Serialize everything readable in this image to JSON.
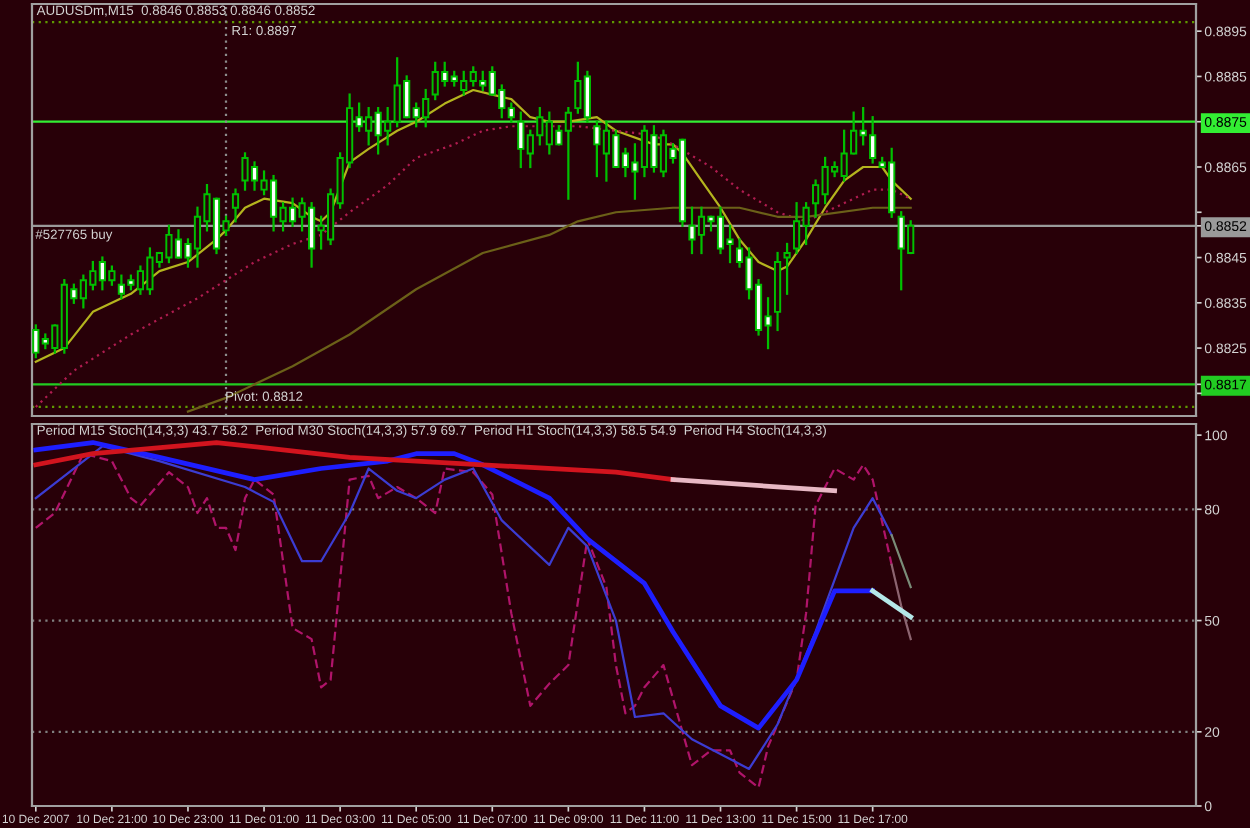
{
  "chart_data": [
    {
      "type": "candlestick",
      "title": "AUDUSDm,M15  0.8846 0.8853 0.8846 0.8852",
      "color": "#00c000",
      "x": [
        "2007-12-10T19:00",
        "2007-12-10T19:15",
        "2007-12-10T19:30",
        "2007-12-10T19:45",
        "2007-12-10T20:00",
        "2007-12-10T20:15",
        "2007-12-10T20:30",
        "2007-12-10T20:45",
        "2007-12-10T21:00",
        "2007-12-10T21:15",
        "2007-12-10T21:30",
        "2007-12-10T21:45",
        "2007-12-10T22:00",
        "2007-12-10T22:15",
        "2007-12-10T22:30",
        "2007-12-10T22:45",
        "2007-12-10T23:00",
        "2007-12-10T23:15",
        "2007-12-10T23:30",
        "2007-12-10T23:45",
        "2007-12-11T00:00",
        "2007-12-11T00:15",
        "2007-12-11T00:30",
        "2007-12-11T00:45",
        "2007-12-11T01:00",
        "2007-12-11T01:15",
        "2007-12-11T01:30",
        "2007-12-11T01:45",
        "2007-12-11T02:00",
        "2007-12-11T02:15",
        "2007-12-11T02:30",
        "2007-12-11T02:45",
        "2007-12-11T03:00",
        "2007-12-11T03:15",
        "2007-12-11T03:30",
        "2007-12-11T03:45",
        "2007-12-11T04:00",
        "2007-12-11T04:15",
        "2007-12-11T04:30",
        "2007-12-11T04:45",
        "2007-12-11T05:00",
        "2007-12-11T05:15",
        "2007-12-11T05:30",
        "2007-12-11T05:45",
        "2007-12-11T06:00",
        "2007-12-11T06:15",
        "2007-12-11T06:30",
        "2007-12-11T06:45",
        "2007-12-11T07:00",
        "2007-12-11T07:15",
        "2007-12-11T07:30",
        "2007-12-11T07:45",
        "2007-12-11T08:00",
        "2007-12-11T08:15",
        "2007-12-11T08:30",
        "2007-12-11T08:45",
        "2007-12-11T09:00",
        "2007-12-11T09:15",
        "2007-12-11T09:30",
        "2007-12-11T09:45",
        "2007-12-11T10:00",
        "2007-12-11T10:15",
        "2007-12-11T10:30",
        "2007-12-11T10:45",
        "2007-12-11T11:00",
        "2007-12-11T11:15",
        "2007-12-11T11:30",
        "2007-12-11T11:45",
        "2007-12-11T12:00",
        "2007-12-11T12:15",
        "2007-12-11T12:30",
        "2007-12-11T12:45",
        "2007-12-11T13:00",
        "2007-12-11T13:15",
        "2007-12-11T13:30",
        "2007-12-11T13:45",
        "2007-12-11T14:00",
        "2007-12-11T14:15",
        "2007-12-11T14:30",
        "2007-12-11T14:45",
        "2007-12-11T15:00",
        "2007-12-11T15:15",
        "2007-12-11T15:30",
        "2007-12-11T15:45",
        "2007-12-11T16:00",
        "2007-12-11T16:15",
        "2007-12-11T16:30",
        "2007-12-11T16:45",
        "2007-12-11T17:00",
        "2007-12-11T17:15",
        "2007-12-11T17:30",
        "2007-12-11T17:45",
        "2007-12-11T18:00"
      ],
      "ohlc": [
        [
          0.8829,
          0.883,
          0.8823,
          0.8824
        ],
        [
          0.8827,
          0.8828,
          0.8825,
          0.8826
        ],
        [
          0.8825,
          0.883,
          0.8824,
          0.883
        ],
        [
          0.8825,
          0.884,
          0.8824,
          0.8839
        ],
        [
          0.8838,
          0.8839,
          0.8835,
          0.8836
        ],
        [
          0.8836,
          0.8841,
          0.8834,
          0.884
        ],
        [
          0.8839,
          0.8844,
          0.8838,
          0.8842
        ],
        [
          0.8844,
          0.8845,
          0.8838,
          0.884
        ],
        [
          0.884,
          0.8843,
          0.8839,
          0.8842
        ],
        [
          0.8839,
          0.8841,
          0.8836,
          0.8837
        ],
        [
          0.884,
          0.8841,
          0.8838,
          0.8839
        ],
        [
          0.8838,
          0.8843,
          0.8837,
          0.8842
        ],
        [
          0.8838,
          0.8847,
          0.8837,
          0.8845
        ],
        [
          0.8844,
          0.8846,
          0.8843,
          0.8846
        ],
        [
          0.8845,
          0.8852,
          0.8844,
          0.885
        ],
        [
          0.8849,
          0.8851,
          0.8845,
          0.8845
        ],
        [
          0.8848,
          0.8849,
          0.8843,
          0.8845
        ],
        [
          0.8847,
          0.8856,
          0.8843,
          0.8854
        ],
        [
          0.8853,
          0.8861,
          0.8851,
          0.8859
        ],
        [
          0.8858,
          0.8858,
          0.8846,
          0.8847
        ],
        [
          0.8851,
          0.8854,
          0.885,
          0.8853
        ],
        [
          0.8856,
          0.886,
          0.8853,
          0.8859
        ],
        [
          0.8862,
          0.8868,
          0.886,
          0.8867
        ],
        [
          0.8865,
          0.8866,
          0.886,
          0.8862
        ],
        [
          0.886,
          0.8864,
          0.8859,
          0.8862
        ],
        [
          0.8862,
          0.8863,
          0.8851,
          0.8854
        ],
        [
          0.8853,
          0.8857,
          0.8851,
          0.8856
        ],
        [
          0.8856,
          0.8858,
          0.8852,
          0.8853
        ],
        [
          0.8854,
          0.8858,
          0.8851,
          0.8857
        ],
        [
          0.8856,
          0.8857,
          0.8843,
          0.8847
        ],
        [
          0.8851,
          0.8854,
          0.8847,
          0.8852
        ],
        [
          0.8849,
          0.886,
          0.8848,
          0.8859
        ],
        [
          0.8857,
          0.8868,
          0.8856,
          0.8867
        ],
        [
          0.8866,
          0.8881,
          0.8865,
          0.8878
        ],
        [
          0.8876,
          0.8879,
          0.8873,
          0.8874
        ],
        [
          0.8873,
          0.8878,
          0.887,
          0.8876
        ],
        [
          0.8877,
          0.8878,
          0.8868,
          0.8872
        ],
        [
          0.8873,
          0.8878,
          0.887,
          0.8875
        ],
        [
          0.8875,
          0.8889,
          0.8874,
          0.8883
        ],
        [
          0.8884,
          0.8885,
          0.8876,
          0.8876
        ],
        [
          0.8878,
          0.8879,
          0.8874,
          0.8876
        ],
        [
          0.8876,
          0.8882,
          0.8874,
          0.888
        ],
        [
          0.8881,
          0.8888,
          0.888,
          0.8886
        ],
        [
          0.8886,
          0.8888,
          0.8883,
          0.8884
        ],
        [
          0.8885,
          0.8886,
          0.8883,
          0.8884
        ],
        [
          0.8882,
          0.8886,
          0.8881,
          0.8884
        ],
        [
          0.8884,
          0.8887,
          0.8883,
          0.8886
        ],
        [
          0.8884,
          0.8886,
          0.8882,
          0.8883
        ],
        [
          0.8886,
          0.8887,
          0.8881,
          0.8881
        ],
        [
          0.8882,
          0.8883,
          0.8876,
          0.8878
        ],
        [
          0.8878,
          0.8879,
          0.8875,
          0.8876
        ],
        [
          0.8875,
          0.8877,
          0.8865,
          0.8869
        ],
        [
          0.8868,
          0.8873,
          0.8865,
          0.8872
        ],
        [
          0.8872,
          0.8878,
          0.887,
          0.8876
        ],
        [
          0.887,
          0.8877,
          0.8868,
          0.8875
        ],
        [
          0.8873,
          0.8874,
          0.887,
          0.887
        ],
        [
          0.8873,
          0.8878,
          0.8858,
          0.8877
        ],
        [
          0.8878,
          0.8888,
          0.8877,
          0.8884
        ],
        [
          0.8885,
          0.8886,
          0.8875,
          0.8876
        ],
        [
          0.8874,
          0.8875,
          0.8863,
          0.887
        ],
        [
          0.8868,
          0.8875,
          0.8862,
          0.8873
        ],
        [
          0.8872,
          0.8873,
          0.8865,
          0.8865
        ],
        [
          0.8868,
          0.8869,
          0.8863,
          0.8865
        ],
        [
          0.8866,
          0.887,
          0.8858,
          0.8864
        ],
        [
          0.8865,
          0.8874,
          0.8863,
          0.8873
        ],
        [
          0.8872,
          0.8874,
          0.8864,
          0.8865
        ],
        [
          0.8864,
          0.8873,
          0.8863,
          0.8872
        ],
        [
          0.8869,
          0.887,
          0.8866,
          0.8867
        ],
        [
          0.8871,
          0.8871,
          0.8852,
          0.8853
        ],
        [
          0.8852,
          0.8856,
          0.8846,
          0.8849
        ],
        [
          0.885,
          0.8856,
          0.8846,
          0.8854
        ],
        [
          0.8854,
          0.8854,
          0.8851,
          0.8853
        ],
        [
          0.8854,
          0.8856,
          0.8846,
          0.8847
        ],
        [
          0.8849,
          0.8852,
          0.8844,
          0.8848
        ],
        [
          0.8847,
          0.8849,
          0.8843,
          0.8844
        ],
        [
          0.8845,
          0.8847,
          0.8836,
          0.8838
        ],
        [
          0.8839,
          0.884,
          0.8828,
          0.8829
        ],
        [
          0.8832,
          0.8836,
          0.8825,
          0.883
        ],
        [
          0.8833,
          0.8846,
          0.8829,
          0.8844
        ],
        [
          0.8845,
          0.8848,
          0.8837,
          0.8846
        ],
        [
          0.8847,
          0.8857,
          0.8846,
          0.8853
        ],
        [
          0.8852,
          0.8857,
          0.8848,
          0.8856
        ],
        [
          0.8857,
          0.8862,
          0.8854,
          0.8861
        ],
        [
          0.8859,
          0.8867,
          0.8857,
          0.8865
        ],
        [
          0.8864,
          0.8866,
          0.8863,
          0.8865
        ],
        [
          0.8863,
          0.8873,
          0.8862,
          0.8868
        ],
        [
          0.8868,
          0.8877,
          0.8868,
          0.8873
        ],
        [
          0.8873,
          0.8878,
          0.887,
          0.8872
        ],
        [
          0.8872,
          0.8876,
          0.8866,
          0.8867
        ],
        [
          0.8866,
          0.8867,
          0.8865,
          0.8865
        ],
        [
          0.8866,
          0.8869,
          0.8854,
          0.8855
        ],
        [
          0.8854,
          0.8855,
          0.8838,
          0.8847
        ],
        [
          0.8846,
          0.8853,
          0.8846,
          0.8852
        ]
      ],
      "series": [
        {
          "type": "line",
          "color": "#b4b41e",
          "x": [
            "2007-12-10T19:00",
            "2007-12-10T19:45",
            "2007-12-10T20:30",
            "2007-12-10T21:30",
            "2007-12-10T22:15",
            "2007-12-10T23:00",
            "2007-12-10T23:45",
            "2007-12-11T00:00",
            "2007-12-11T00:30",
            "2007-12-11T01:00",
            "2007-12-11T01:45",
            "2007-12-11T02:15",
            "2007-12-11T02:30",
            "2007-12-11T02:45",
            "2007-12-11T03:15",
            "2007-12-11T03:45",
            "2007-12-11T04:30",
            "2007-12-11T05:00",
            "2007-12-11T05:45",
            "2007-12-11T06:30",
            "2007-12-11T07:00",
            "2007-12-11T07:30",
            "2007-12-11T08:00",
            "2007-12-11T08:30",
            "2007-12-11T09:00",
            "2007-12-11T09:45",
            "2007-12-11T10:15",
            "2007-12-11T11:15",
            "2007-12-11T11:45",
            "2007-12-11T12:00",
            "2007-12-11T12:30",
            "2007-12-11T13:00",
            "2007-12-11T13:30",
            "2007-12-11T14:00",
            "2007-12-11T14:30",
            "2007-12-11T14:45",
            "2007-12-11T15:15",
            "2007-12-11T15:45",
            "2007-12-11T16:15",
            "2007-12-11T16:45",
            "2007-12-11T17:15",
            "2007-12-11T17:30",
            "2007-12-11T18:00"
          ],
          "values": [
            0.8822,
            0.8825,
            0.8833,
            0.8837,
            0.8842,
            0.8844,
            0.8849,
            0.8851,
            0.8856,
            0.8858,
            0.8857,
            0.8854,
            0.8853,
            0.8855,
            0.8866,
            0.8869,
            0.8873,
            0.8875,
            0.8879,
            0.8882,
            0.8881,
            0.888,
            0.8876,
            0.8875,
            0.8875,
            0.8876,
            0.8873,
            0.887,
            0.887,
            0.8868,
            0.8862,
            0.8856,
            0.8849,
            0.8844,
            0.8842,
            0.8843,
            0.8849,
            0.8856,
            0.8862,
            0.8865,
            0.8865,
            0.8862,
            0.8858
          ]
        },
        {
          "type": "line",
          "color": "#b01c50",
          "line_style": "dotted",
          "x": [
            "2007-12-10T19:00",
            "2007-12-10T20:00",
            "2007-12-10T21:30",
            "2007-12-10T23:15",
            "2007-12-11T00:00",
            "2007-12-11T00:45",
            "2007-12-11T01:45",
            "2007-12-11T02:30",
            "2007-12-11T03:15",
            "2007-12-11T04:15",
            "2007-12-11T05:00",
            "2007-12-11T06:00",
            "2007-12-11T06:45",
            "2007-12-11T07:30",
            "2007-12-11T08:30",
            "2007-12-11T09:15",
            "2007-12-11T10:15",
            "2007-12-11T11:15",
            "2007-12-11T11:45",
            "2007-12-11T12:45",
            "2007-12-11T13:30",
            "2007-12-11T14:30",
            "2007-12-11T15:15",
            "2007-12-11T16:00",
            "2007-12-11T17:00",
            "2007-12-11T17:30",
            "2007-12-11T18:00"
          ],
          "values": [
            0.8812,
            0.882,
            0.8828,
            0.8836,
            0.884,
            0.8844,
            0.8848,
            0.885,
            0.8855,
            0.8861,
            0.8867,
            0.887,
            0.8873,
            0.8874,
            0.8874,
            0.8874,
            0.8873,
            0.8872,
            0.887,
            0.8865,
            0.886,
            0.8855,
            0.8853,
            0.8856,
            0.886,
            0.886,
            0.8858
          ]
        },
        {
          "type": "line",
          "color": "#6b6018",
          "x": [
            "2007-12-10T23:00",
            "2007-12-11T00:00",
            "2007-12-11T01:45",
            "2007-12-11T03:15",
            "2007-12-11T05:00",
            "2007-12-11T06:45",
            "2007-12-11T08:30",
            "2007-12-11T09:15",
            "2007-12-11T10:15",
            "2007-12-11T11:45",
            "2007-12-11T13:30",
            "2007-12-11T14:30",
            "2007-12-11T15:15",
            "2007-12-11T17:00",
            "2007-12-11T18:00"
          ],
          "values": [
            0.8811,
            0.8814,
            0.8821,
            0.8828,
            0.8838,
            0.8846,
            0.885,
            0.8853,
            0.8855,
            0.8856,
            0.8856,
            0.8854,
            0.8854,
            0.8856,
            0.8856
          ]
        }
      ],
      "xlim": [
        "2007-12-10T18:54",
        "2007-12-12T01:30"
      ],
      "ylim": [
        0.881,
        0.8901
      ],
      "yticks": [
        0.8895,
        0.8885,
        0.8875,
        0.8865,
        {
          "value": 0.8855,
          "label": null
        },
        0.8852,
        0.8845,
        0.8835,
        0.8825,
        0.8817,
        {
          "value": 0.8815,
          "label": null
        }
      ],
      "tick_labels": "y",
      "ref_lines": [
        {
          "axis": "y",
          "value": 0.8897,
          "color": "#5f9a00",
          "line_style": "dotted"
        },
        {
          "axis": "y",
          "value": 0.8875,
          "color": "#33ee33"
        },
        {
          "axis": "y",
          "value": 0.8852,
          "color": "#9a9a9a"
        },
        {
          "axis": "y",
          "value": 0.8817,
          "color": "#22cc22"
        },
        {
          "axis": "y",
          "value": 0.8812,
          "color": "#5f9a00",
          "line_style": "dotted"
        },
        {
          "axis": "x",
          "value": "2007-12-11T00:00",
          "color": "#8c8c8c",
          "line_style": "dotted"
        }
      ],
      "annotations": [
        {
          "text": "R1: 0.8897",
          "x": "2007-12-11T01:00",
          "y": 0.8897
        },
        {
          "text": "#527765 buy",
          "x": "2007-12-10T20:00",
          "y": 0.8852
        },
        {
          "text": "Pivot: 0.8812",
          "x": "2007-12-11T01:00",
          "y": 0.8812
        }
      ]
    },
    {
      "type": "line",
      "title": "Period M15 Stoch(14,3,3) 43.7 58.2  Period M30 Stoch(14,3,3) 57.9 69.7  Period H1 Stoch(14,3,3) 58.5 54.9  Period H4 Stoch(14,3,3)",
      "series": [
        {
          "color": "#b0146a",
          "line_style": "dashed",
          "x": [
            "2007-12-10T19:00",
            "2007-12-10T19:30",
            "2007-12-10T20:15",
            "2007-12-10T21:00",
            "2007-12-10T21:30",
            "2007-12-10T21:45",
            "2007-12-10T22:30",
            "2007-12-10T23:00",
            "2007-12-10T23:15",
            "2007-12-10T23:30",
            "2007-12-10T23:45",
            "2007-12-11T00:00",
            "2007-12-11T00:15",
            "2007-12-11T00:30",
            "2007-12-11T00:45",
            "2007-12-11T01:15",
            "2007-12-11T01:45",
            "2007-12-11T02:15",
            "2007-12-11T02:30",
            "2007-12-11T02:45",
            "2007-12-11T03:15",
            "2007-12-11T03:45",
            "2007-12-11T04:00",
            "2007-12-11T04:30",
            "2007-12-11T05:00",
            "2007-12-11T05:30",
            "2007-12-11T05:45",
            "2007-12-11T06:30",
            "2007-12-11T07:00",
            "2007-12-11T07:30",
            "2007-12-11T08:00",
            "2007-12-11T08:30",
            "2007-12-11T09:00",
            "2007-12-11T09:30",
            "2007-12-11T10:00",
            "2007-12-11T10:15",
            "2007-12-11T10:30",
            "2007-12-11T10:45",
            "2007-12-11T11:00",
            "2007-12-11T11:30",
            "2007-12-11T12:15",
            "2007-12-11T12:45",
            "2007-12-11T13:15",
            "2007-12-11T13:30",
            "2007-12-11T14:00",
            "2007-12-11T14:15",
            "2007-12-11T15:00",
            "2007-12-11T15:15",
            "2007-12-11T15:30",
            "2007-12-11T16:00",
            "2007-12-11T16:30",
            "2007-12-11T16:45",
            "2007-12-11T17:00",
            "2007-12-11T17:30"
          ],
          "values": [
            75,
            79,
            95,
            93,
            83,
            81,
            90,
            86,
            79,
            83,
            75,
            75,
            69,
            83,
            88,
            84,
            48,
            45,
            32,
            34,
            88,
            89,
            83,
            86,
            83,
            79,
            91,
            90,
            84,
            52,
            27,
            33,
            38,
            72,
            59,
            38,
            25,
            27,
            32,
            38,
            11,
            15,
            15,
            9,
            5,
            16,
            34,
            52,
            81,
            91,
            88,
            92,
            88,
            65
          ]
        },
        {
          "color": "#3c3cd2",
          "x": [
            "2007-12-10T19:00",
            "2007-12-10T20:00",
            "2007-12-10T20:45",
            "2007-12-10T22:15",
            "2007-12-11T00:30",
            "2007-12-11T01:15",
            "2007-12-11T02:00",
            "2007-12-11T02:30",
            "2007-12-11T03:15",
            "2007-12-11T03:45",
            "2007-12-11T04:30",
            "2007-12-11T05:00",
            "2007-12-11T05:45",
            "2007-12-11T06:30",
            "2007-12-11T07:15",
            "2007-12-11T08:30",
            "2007-12-11T09:00",
            "2007-12-11T09:30",
            "2007-12-11T10:15",
            "2007-12-11T10:45",
            "2007-12-11T11:30",
            "2007-12-11T12:15",
            "2007-12-11T13:45",
            "2007-12-11T14:30",
            "2007-12-11T15:30",
            "2007-12-11T16:30",
            "2007-12-11T17:00",
            "2007-12-11T17:30"
          ],
          "values": [
            83,
            91,
            97,
            93,
            86,
            82,
            66,
            66,
            79,
            91,
            85,
            83,
            88,
            91,
            77,
            65,
            75,
            70,
            50,
            24,
            25,
            18,
            10,
            22,
            47,
            75,
            83,
            73
          ]
        },
        {
          "color": "#1e1eff",
          "x": [
            "2007-12-10T19:00",
            "2007-12-10T20:30",
            "2007-12-10T22:15",
            "2007-12-11T00:45",
            "2007-12-11T02:30",
            "2007-12-11T04:15",
            "2007-12-11T05:00",
            "2007-12-11T06:00",
            "2007-12-11T06:45",
            "2007-12-11T08:30",
            "2007-12-11T09:30",
            "2007-12-11T10:15",
            "2007-12-11T11:00",
            "2007-12-11T11:45",
            "2007-12-11T13:00",
            "2007-12-11T14:00",
            "2007-12-11T15:00",
            "2007-12-11T16:00",
            "2007-12-11T17:00"
          ],
          "values": [
            96,
            98,
            94,
            88,
            91,
            93,
            95,
            95,
            92,
            83,
            72,
            66,
            60,
            47,
            27,
            21,
            34,
            58,
            58
          ]
        },
        {
          "color": "#d2141e",
          "x": [
            "2007-12-10T19:00",
            "2007-12-10T20:30",
            "2007-12-10T23:45",
            "2007-12-11T03:15",
            "2007-12-11T06:45",
            "2007-12-11T10:15",
            "2007-12-11T11:45"
          ],
          "values": [
            92,
            95,
            98,
            94,
            92,
            90,
            88
          ]
        },
        {
          "color": "#8c6470",
          "x": [
            "2007-12-11T17:30",
            "2007-12-11T17:45",
            "2007-12-11T18:00"
          ],
          "values": [
            65,
            54,
            45
          ]
        },
        {
          "color": "#7a8c78",
          "x": [
            "2007-12-11T17:30",
            "2007-12-11T18:00"
          ],
          "values": [
            73,
            59
          ]
        },
        {
          "color": "#b4e8e8",
          "x": [
            "2007-12-11T17:00",
            "2007-12-11T18:00"
          ],
          "values": [
            58,
            51
          ]
        },
        {
          "color": "#e8b8c4",
          "x": [
            "2007-12-11T11:45",
            "2007-12-11T16:00"
          ],
          "values": [
            88,
            85
          ]
        }
      ],
      "xlim": [
        "2007-12-10T18:54",
        "2007-12-12T01:30"
      ],
      "xticks": [
        {
          "value": "2007-12-10T19:00",
          "label": "10 Dec 2007"
        },
        {
          "value": "2007-12-10T21:00",
          "label": "10 Dec 21:00"
        },
        {
          "value": "2007-12-10T23:00",
          "label": "10 Dec 23:00"
        },
        {
          "value": "2007-12-11T01:00",
          "label": "11 Dec 01:00"
        },
        {
          "value": "2007-12-11T03:00",
          "label": "11 Dec 03:00"
        },
        {
          "value": "2007-12-11T05:00",
          "label": "11 Dec 05:00"
        },
        {
          "value": "2007-12-11T07:00",
          "label": "11 Dec 07:00"
        },
        {
          "value": "2007-12-11T09:00",
          "label": "11 Dec 09:00"
        },
        {
          "value": "2007-12-11T11:00",
          "label": "11 Dec 11:00"
        },
        {
          "value": "2007-12-11T13:00",
          "label": "11 Dec 13:00"
        },
        {
          "value": "2007-12-11T15:00",
          "label": "11 Dec 15:00"
        },
        {
          "value": "2007-12-11T17:00",
          "label": "11 Dec 17:00"
        }
      ],
      "ylim": [
        0,
        103
      ],
      "yticks": [
        100,
        80,
        50,
        20,
        0
      ],
      "ref_lines": [
        {
          "axis": "y",
          "value": 80,
          "color": "#808080",
          "line_style": "dotted"
        },
        {
          "axis": "y",
          "value": 50,
          "color": "#808080",
          "line_style": "dotted"
        },
        {
          "axis": "y",
          "value": 20,
          "color": "#808080",
          "line_style": "dotted"
        }
      ]
    }
  ]
}
